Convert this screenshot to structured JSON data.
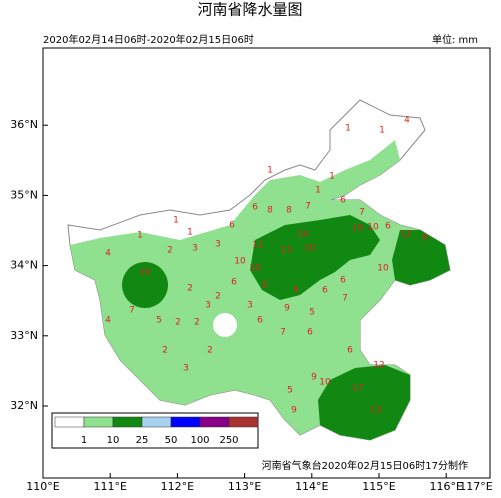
{
  "title": "河南省降水量图",
  "period": "2020年02月14日06时-2020年02月15日06时",
  "unit": "单位: mm",
  "footer": "河南省气象台2020年02月15日06时17分制作",
  "lon_ticks": [
    {
      "value": 110,
      "label": "110°E"
    },
    {
      "value": 111,
      "label": "111°E"
    },
    {
      "value": 112,
      "label": "112°E"
    },
    {
      "value": 113,
      "label": "113°E"
    },
    {
      "value": 114,
      "label": "114°E"
    },
    {
      "value": 115,
      "label": "115°E"
    },
    {
      "value": 116,
      "label": "116°E"
    },
    {
      "value": 117,
      "label": "117°E"
    }
  ],
  "lat_ticks": [
    {
      "value": 32,
      "label": "32°N"
    },
    {
      "value": 33,
      "label": "33°N"
    },
    {
      "value": 34,
      "label": "34°N"
    },
    {
      "value": 35,
      "label": "35°N"
    },
    {
      "value": 36,
      "label": "36°N"
    }
  ],
  "legend": {
    "colors": [
      "#ffffff",
      "#8fe08f",
      "#118811",
      "#a6d2f0",
      "#0000ff",
      "#880088",
      "#a83232"
    ],
    "labels": [
      1,
      10,
      25,
      50,
      100,
      250
    ]
  },
  "stations": [
    4,
    1,
    1,
    1,
    1,
    1,
    1,
    1,
    1,
    4,
    2,
    3,
    3,
    6,
    6,
    8,
    8,
    7,
    6,
    7,
    10,
    10,
    6,
    12,
    8,
    11,
    14,
    10,
    10,
    13,
    10,
    10,
    6,
    10,
    2,
    2,
    6,
    6,
    8,
    6,
    7,
    3,
    3,
    7,
    5,
    2,
    2,
    4,
    9,
    5,
    6,
    7,
    6,
    2,
    2,
    3,
    6,
    5,
    9,
    12,
    10,
    17,
    9,
    13
  ]
}
